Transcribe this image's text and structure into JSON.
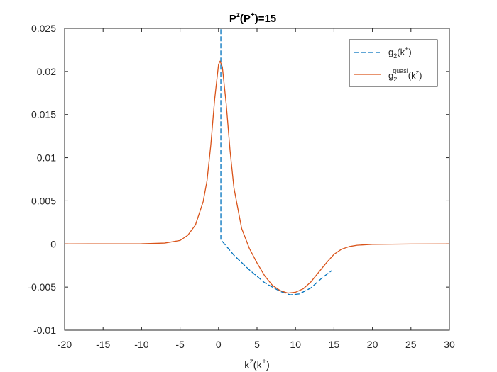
{
  "chart_data": {
    "type": "line",
    "title": {
      "base": "P",
      "sup1": "z",
      "mid": "(P",
      "sup2": "+",
      "end": ")=15"
    },
    "xlabel": {
      "base": "k",
      "sup1": "z",
      "mid": "(k",
      "sup2": "+",
      "end": ")"
    },
    "xlim": [
      -20,
      30
    ],
    "ylim": [
      -0.01,
      0.025
    ],
    "xticks": [
      -20,
      -15,
      -10,
      -5,
      0,
      5,
      10,
      15,
      20,
      25,
      30
    ],
    "xtick_labels": [
      "-20",
      "-15",
      "-10",
      "-5",
      "0",
      "5",
      "10",
      "15",
      "20",
      "25",
      "30"
    ],
    "yticks": [
      -0.01,
      -0.005,
      0,
      0.005,
      0.01,
      0.015,
      0.02,
      0.025
    ],
    "ytick_labels": [
      "-0.01",
      "-0.005",
      "0",
      "0.005",
      "0.01",
      "0.015",
      "0.02",
      "0.025"
    ],
    "grid": false,
    "legend_position": "top-right",
    "series": [
      {
        "name": "g2(k+)",
        "legend": {
          "base": "g",
          "sub": "2",
          "mid": "(k",
          "sup": "+",
          "end": ")"
        },
        "color": "#0072bd",
        "style": "dashed",
        "points": [
          [
            0.3,
            0.0265
          ],
          [
            0.3,
            0.0005
          ],
          [
            2,
            -0.0013
          ],
          [
            4,
            -0.003
          ],
          [
            6,
            -0.0045
          ],
          [
            8,
            -0.0055
          ],
          [
            9.3,
            -0.0059
          ],
          [
            10.5,
            -0.0058
          ],
          [
            12,
            -0.0051
          ],
          [
            13.5,
            -0.0039
          ],
          [
            14.7,
            -0.0031
          ]
        ]
      },
      {
        "name": "g2quasi(kz)",
        "legend": {
          "base": "g",
          "sub": "2",
          "sup": "quasi",
          "mid": "(k",
          "sup2": "z",
          "end": ")"
        },
        "color": "#d95319",
        "style": "solid",
        "points": [
          [
            -20,
            0
          ],
          [
            -10,
            2e-05
          ],
          [
            -7,
            0.0001
          ],
          [
            -5,
            0.0004
          ],
          [
            -4,
            0.001
          ],
          [
            -3,
            0.0022
          ],
          [
            -2,
            0.0049
          ],
          [
            -1.5,
            0.0073
          ],
          [
            -1,
            0.0115
          ],
          [
            -0.5,
            0.0168
          ],
          [
            0,
            0.0208
          ],
          [
            0.2,
            0.0212
          ],
          [
            0.5,
            0.0205
          ],
          [
            1,
            0.0162
          ],
          [
            1.5,
            0.0108
          ],
          [
            2,
            0.0065
          ],
          [
            3,
            0.0018
          ],
          [
            4,
            -0.0005
          ],
          [
            5,
            -0.0022
          ],
          [
            6,
            -0.0037
          ],
          [
            7,
            -0.0048
          ],
          [
            8,
            -0.0054
          ],
          [
            9,
            -0.0057
          ],
          [
            10,
            -0.0056
          ],
          [
            11,
            -0.0052
          ],
          [
            12,
            -0.0044
          ],
          [
            13,
            -0.0033
          ],
          [
            14,
            -0.0022
          ],
          [
            15,
            -0.0012
          ],
          [
            16,
            -0.0006
          ],
          [
            17,
            -0.0003
          ],
          [
            18,
            -0.00015
          ],
          [
            20,
            -5e-05
          ],
          [
            25,
            -1e-05
          ],
          [
            30,
            0
          ]
        ]
      }
    ]
  }
}
